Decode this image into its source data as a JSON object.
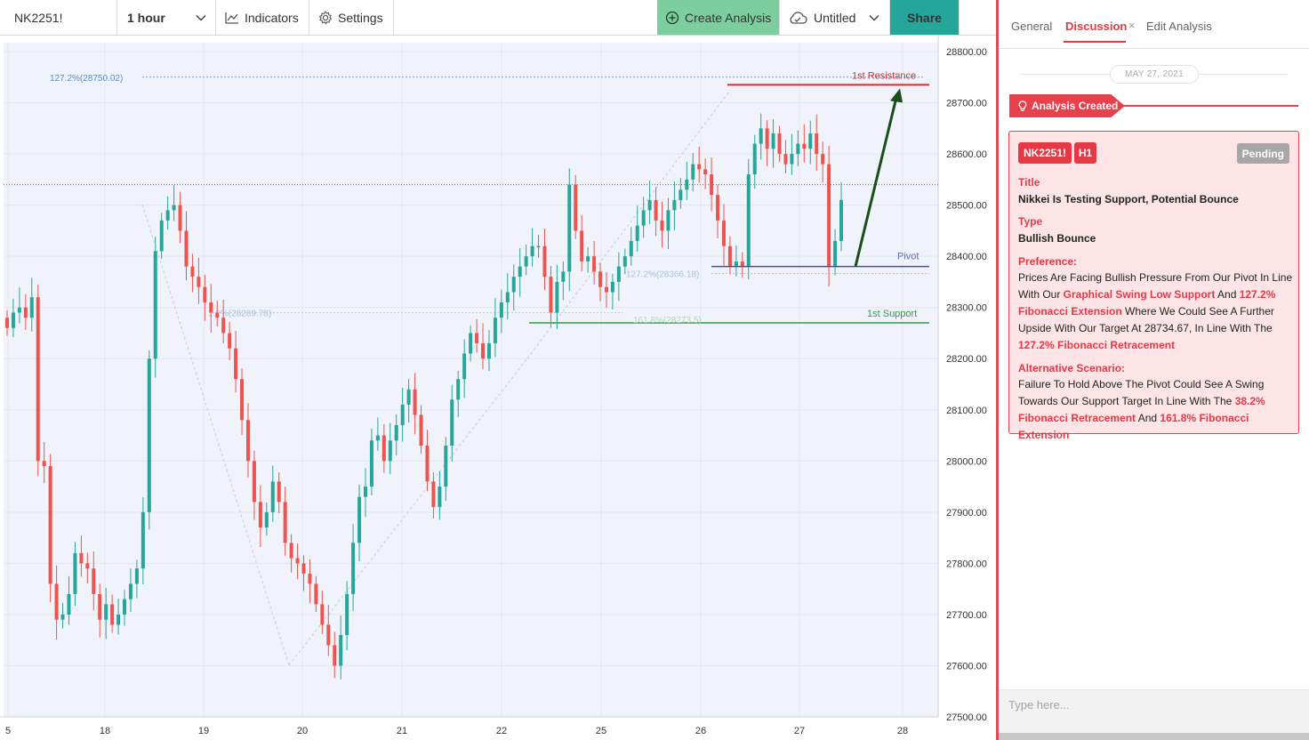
{
  "toolbar": {
    "symbol": "NK2251!",
    "interval": "1 hour",
    "indicators_label": "Indicators",
    "settings_label": "Settings",
    "create_label": "Create Analysis",
    "untitled_label": "Untitled",
    "share_label": "Share"
  },
  "chart": {
    "y_ticks": [
      "28800.00",
      "28700.00",
      "28600.00",
      "28500.00",
      "28400.00",
      "28300.00",
      "28200.00",
      "28100.00",
      "28000.00",
      "27900.00",
      "27800.00",
      "27700.00",
      "27600.00",
      "27500.00"
    ],
    "x_ticks": [
      "5",
      "18",
      "19",
      "20",
      "21",
      "22",
      "25",
      "26",
      "27",
      "28"
    ],
    "annotations": {
      "fib_top": "127.2%(28750.02)",
      "fib_mid_left": "1.2%(28289.78)",
      "fib_pivot": "127.2%(28366.18)",
      "fib_161": "161.8%(28273.5)",
      "resistance": "1st Resistance",
      "pivot": "Pivot",
      "support": "1st Support"
    },
    "colors": {
      "up": "#26a69a",
      "down": "#ef5350",
      "resistance": "#d32f2f",
      "pivot": "#3f51b5",
      "support": "#2e9d47",
      "arrow": "#1b4d1b"
    }
  },
  "chart_data": {
    "type": "candlestick",
    "symbol": "NK2251!",
    "interval": "1 hour",
    "ylim": [
      27500,
      28800
    ],
    "levels": {
      "resistance": 28735,
      "pivot": 28380,
      "support": 28270,
      "fib_127_top": 28750.02,
      "fib_127_pivot": 28366.18,
      "fib_161": 28273.5,
      "fib_left": 28289.78,
      "last_price_line": 28540
    },
    "closes": [
      28260,
      28290,
      28300,
      28280,
      28320,
      28000,
      27990,
      27760,
      27690,
      27700,
      27740,
      27820,
      27800,
      27790,
      27740,
      27690,
      27720,
      27680,
      27700,
      27730,
      27760,
      27790,
      27900,
      28200,
      28410,
      28470,
      28490,
      28500,
      28450,
      28380,
      28360,
      28340,
      28310,
      28290,
      28280,
      28250,
      28220,
      28160,
      28080,
      28000,
      27920,
      27870,
      27900,
      27960,
      27920,
      27840,
      27810,
      27800,
      27780,
      27760,
      27720,
      27680,
      27640,
      27600,
      27660,
      27740,
      27840,
      27930,
      27950,
      28040,
      28050,
      28000,
      28040,
      28070,
      28110,
      28140,
      28090,
      28030,
      27960,
      27910,
      27950,
      28030,
      28120,
      28160,
      28210,
      28250,
      28230,
      28200,
      28230,
      28280,
      28310,
      28330,
      28360,
      28380,
      28400,
      28420,
      28420,
      28360,
      28290,
      28350,
      28370,
      28540,
      28450,
      28390,
      28400,
      28370,
      28340,
      28330,
      28350,
      28380,
      28400,
      28430,
      28460,
      28490,
      28510,
      28470,
      28450,
      28490,
      28510,
      28530,
      28550,
      28580,
      28570,
      28560,
      28520,
      28470,
      28420,
      28380,
      28390,
      28380,
      28560,
      28620,
      28650,
      28610,
      28640,
      28600,
      28580,
      28600,
      28620,
      28610,
      28640,
      28600,
      28580,
      28380,
      28430,
      28510
    ]
  }
}
